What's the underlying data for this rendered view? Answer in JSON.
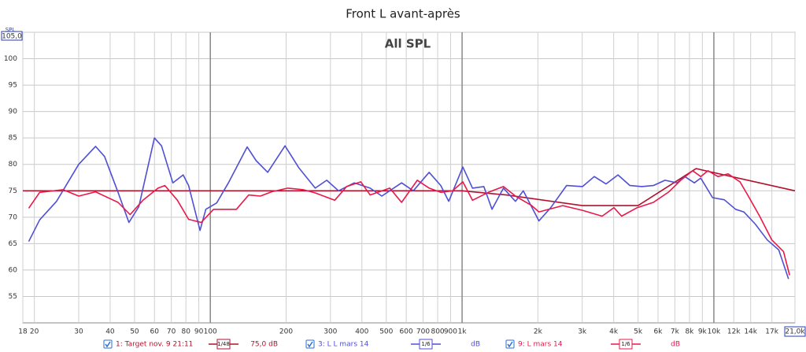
{
  "chart_data": {
    "type": "line",
    "title": "Front L avant-après",
    "annotation": "All SPL",
    "y_label": "SPL",
    "log_x": true,
    "grid": true,
    "xlim": [
      18,
      21000
    ],
    "ylim": [
      50,
      105
    ],
    "xticks": [
      18,
      20,
      30,
      40,
      50,
      60,
      70,
      80,
      90,
      100,
      200,
      300,
      400,
      500,
      600,
      700,
      800,
      900,
      {
        "value": 1000,
        "label": "1k"
      },
      {
        "value": 2000,
        "label": "2k"
      },
      {
        "value": 3000,
        "label": "3k"
      },
      {
        "value": 4000,
        "label": "4k"
      },
      {
        "value": 5000,
        "label": "5k"
      },
      {
        "value": 6000,
        "label": "6k"
      },
      {
        "value": 7000,
        "label": "7k"
      },
      {
        "value": 8000,
        "label": "8k"
      },
      {
        "value": 9000,
        "label": "9k"
      },
      {
        "value": 10000,
        "label": "10k"
      },
      {
        "value": 12000,
        "label": "12k"
      },
      {
        "value": 14000,
        "label": "14k"
      },
      {
        "value": 17000,
        "label": "17k"
      },
      {
        "value": 21000,
        "label": "21,0k"
      }
    ],
    "yticks": [
      55,
      60,
      65,
      70,
      75,
      80,
      85,
      90,
      95,
      100,
      {
        "value": 105,
        "label": "105,0"
      }
    ],
    "series": [
      {
        "name": "1: Target nov. 9 21:11",
        "color": "#b0122c",
        "smoothing": "1/48",
        "level": "75,0 dB",
        "x": [
          18,
          1000,
          1500,
          3000,
          5000,
          8500,
          21000
        ],
        "values": [
          75,
          75,
          74.2,
          72.2,
          72.2,
          79.2,
          75
        ]
      },
      {
        "name": "3: L L mars 14",
        "color": "#4f4fd6",
        "smoothing": "1/6",
        "level": "dB",
        "x": [
          19,
          21,
          24.5,
          30,
          35,
          38,
          43,
          47.5,
          52,
          60,
          64,
          71,
          78,
          82,
          91,
          96,
          106,
          118,
          140,
          152,
          169,
          198,
          225,
          261,
          290,
          323,
          373,
          431,
          480,
          575,
          640,
          740,
          823,
          885,
          1007,
          1100,
          1220,
          1315,
          1460,
          1630,
          1750,
          2020,
          2250,
          2600,
          3010,
          3350,
          3730,
          4160,
          4640,
          5170,
          5750,
          6400,
          7140,
          7660,
          8360,
          8870,
          9880,
          11000,
          12200,
          13150,
          14600,
          16300,
          18100,
          19800
        ],
        "values": [
          65.4,
          69.5,
          73,
          80,
          83.4,
          81.5,
          74.7,
          69,
          72,
          85,
          83.5,
          76.5,
          78,
          76,
          67.5,
          71.5,
          72.7,
          76.5,
          83.3,
          80.7,
          78.5,
          83.5,
          79.3,
          75.5,
          77,
          75,
          76.5,
          75.5,
          74,
          76.5,
          75,
          78.5,
          76,
          73,
          79.5,
          75.5,
          75.8,
          71.5,
          75.5,
          73,
          75,
          69.3,
          71.8,
          76,
          75.8,
          77.7,
          76.3,
          78,
          76,
          75.8,
          76,
          77,
          76.5,
          77.7,
          76.5,
          77.4,
          73.7,
          73.3,
          71.5,
          71,
          68.7,
          65.7,
          63.8,
          58.3
        ]
      },
      {
        "name": "9: L mars 14",
        "color": "#e8194b",
        "smoothing": "1/6",
        "level": "dB",
        "x": [
          19,
          21,
          26,
          30,
          35,
          43,
          48,
          54,
          62,
          66,
          74,
          82,
          92,
          103,
          127,
          142,
          158,
          175,
          203,
          234,
          261,
          312,
          348,
          396,
          431,
          516,
          575,
          664,
          740,
          823,
          917,
          1007,
          1100,
          1270,
          1460,
          1630,
          1890,
          2020,
          2510,
          3010,
          3600,
          4010,
          4300,
          4960,
          5750,
          6630,
          7390,
          8240,
          8870,
          9480,
          10380,
          11400,
          12700,
          13700,
          15200,
          17000,
          18900,
          20000
        ],
        "values": [
          71.7,
          74.7,
          75.2,
          74,
          74.8,
          72.8,
          70.5,
          73.2,
          75.5,
          76,
          73.2,
          69.6,
          69,
          71.5,
          71.5,
          74.2,
          74,
          74.8,
          75.5,
          75.2,
          74.6,
          73.2,
          75.8,
          76.7,
          74.2,
          75.5,
          72.8,
          77,
          75.5,
          74.7,
          75,
          76.7,
          73.2,
          74.7,
          75.8,
          74,
          72.2,
          71,
          72.2,
          71.3,
          70.2,
          71.8,
          70.2,
          71.8,
          72.8,
          74.8,
          77,
          78.8,
          77.7,
          78.8,
          77.7,
          78.2,
          76.7,
          74,
          70.2,
          65.7,
          63.5,
          59
        ]
      }
    ]
  }
}
